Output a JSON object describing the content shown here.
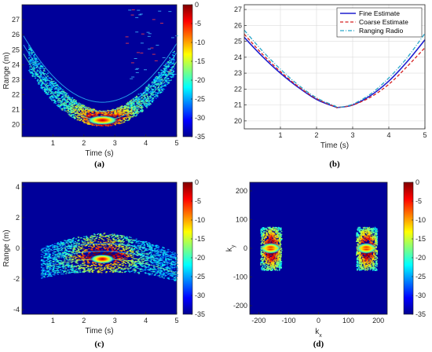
{
  "chart_data": [
    {
      "type": "heatmap",
      "panel_label": "(a)",
      "xlabel": "Time (s)",
      "ylabel": "Range (m)",
      "xlim": [
        0,
        5
      ],
      "ylim": [
        19.2,
        28
      ],
      "xticks": [
        1,
        2,
        3,
        4,
        5
      ],
      "yticks": [
        20,
        21,
        22,
        23,
        24,
        25,
        26,
        27
      ],
      "colorbar": {
        "ticks": [
          0,
          -5,
          -10,
          -15,
          -20,
          -25,
          -30,
          -35
        ],
        "range": [
          -35,
          0
        ]
      },
      "description_curve": {
        "min_time": 2.6,
        "min_range": 20.3,
        "edge_range": 24.9
      }
    },
    {
      "type": "line",
      "panel_label": "(b)",
      "xlabel": "Time (s)",
      "ylabel": "",
      "xlim": [
        0,
        5
      ],
      "ylim": [
        19.5,
        27.3
      ],
      "xticks": [
        1,
        2,
        3,
        4,
        5
      ],
      "yticks": [
        20,
        21,
        22,
        23,
        24,
        25,
        26,
        27
      ],
      "legend_position": "top-right",
      "grid": true,
      "x": [
        0,
        0.5,
        1,
        1.5,
        2,
        2.5,
        2.6,
        3,
        3.5,
        4,
        4.5,
        5
      ],
      "series": [
        {
          "name": "Fine Estimate",
          "color": "#1f1fcf",
          "style": "solid",
          "values": [
            25.25,
            24.05,
            23.0,
            22.1,
            21.35,
            20.9,
            20.85,
            21.0,
            21.6,
            22.5,
            23.7,
            25.1
          ]
        },
        {
          "name": "Coarse Estimate",
          "color": "#d62020",
          "style": "dashed",
          "values": [
            25.45,
            24.2,
            23.1,
            22.15,
            21.4,
            20.9,
            20.85,
            21.0,
            21.5,
            22.3,
            23.4,
            24.6
          ]
        },
        {
          "name": "Ranging Radio",
          "color": "#2aa7c9",
          "style": "dashdot",
          "values": [
            25.7,
            24.4,
            23.25,
            22.25,
            21.45,
            20.95,
            20.85,
            21.05,
            21.7,
            22.7,
            23.95,
            25.5
          ]
        }
      ]
    },
    {
      "type": "heatmap",
      "panel_label": "(c)",
      "xlabel": "Time (s)",
      "ylabel": "Range (m)",
      "xlim": [
        0,
        5
      ],
      "ylim": [
        -4.3,
        4.3
      ],
      "xticks": [
        1,
        2,
        3,
        4,
        5
      ],
      "yticks": [
        4,
        2,
        0,
        -2,
        -4
      ],
      "colorbar": {
        "ticks": [
          0,
          -5,
          -10,
          -15,
          -20,
          -25,
          -30,
          -35
        ],
        "range": [
          -35,
          0
        ]
      },
      "description_curve": {
        "min_time": 2.6,
        "peak_range": -0.7,
        "edge_range": -1.8
      }
    },
    {
      "type": "heatmap",
      "panel_label": "(d)",
      "xlabel": "k_x",
      "ylabel": "k_y",
      "xlim": [
        -230,
        230
      ],
      "ylim": [
        -230,
        230
      ],
      "xticks": [
        -200,
        -100,
        0,
        100,
        200
      ],
      "yticks": [
        200,
        100,
        0,
        -100,
        -200
      ],
      "colorbar": {
        "ticks": [
          0,
          -5,
          -10,
          -15,
          -20,
          -25,
          -30,
          -35
        ],
        "range": [
          -35,
          0
        ]
      },
      "blobs": [
        {
          "kx": -160,
          "ky": 0
        },
        {
          "kx": 160,
          "ky": 0
        }
      ]
    }
  ]
}
